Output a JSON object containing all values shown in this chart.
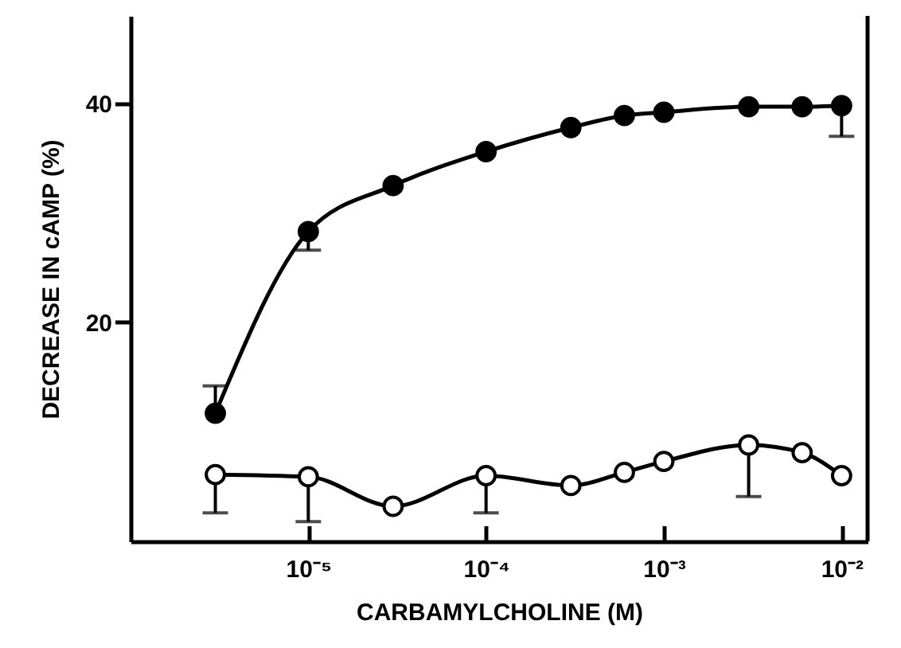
{
  "chart_data": {
    "type": "line",
    "xlabel": "CARBAMYLCHOLINE (M)",
    "ylabel": "DECREASE IN cAMP (%)",
    "x": [
      3e-06,
      1e-05,
      3e-05,
      0.0001,
      0.0003,
      0.0006,
      0.001,
      0.003,
      0.006,
      0.01
    ],
    "series": [
      {
        "color": "#000000",
        "values": [
          11.7,
          28.3,
          32.5,
          35.6,
          37.8,
          38.9,
          39.2,
          39.7,
          39.7,
          39.8
        ],
        "errors": [
          [
            11.7,
            14.2
          ],
          [
            26.6,
            28.3
          ],
          null,
          null,
          null,
          null,
          null,
          null,
          null,
          [
            37.0,
            39.8
          ]
        ]
      },
      {
        "color": "#000000",
        "values": [
          6.1,
          5.9,
          3.2,
          6.0,
          5.1,
          6.3,
          7.3,
          8.8,
          8.1,
          6.0
        ],
        "errors": [
          [
            2.6,
            6.1
          ],
          [
            1.8,
            5.9
          ],
          null,
          [
            2.6,
            6.0
          ],
          null,
          null,
          null,
          [
            4.1,
            8.8
          ],
          null,
          null
        ]
      }
    ],
    "log": "x",
    "xlim": [
      1e-06,
      0.014
    ],
    "xticks": [
      {
        "value": 1e-05,
        "label": "10⁻⁵"
      },
      {
        "value": 0.0001,
        "label": "10⁻⁴"
      },
      {
        "value": 0.001,
        "label": "10⁻³"
      },
      {
        "value": 0.01,
        "label": "10⁻²"
      }
    ],
    "ylim": [
      0,
      48
    ],
    "yticks": [
      20,
      40
    ],
    "marker": "circle",
    "line_style": "solid",
    "grid": false
  }
}
